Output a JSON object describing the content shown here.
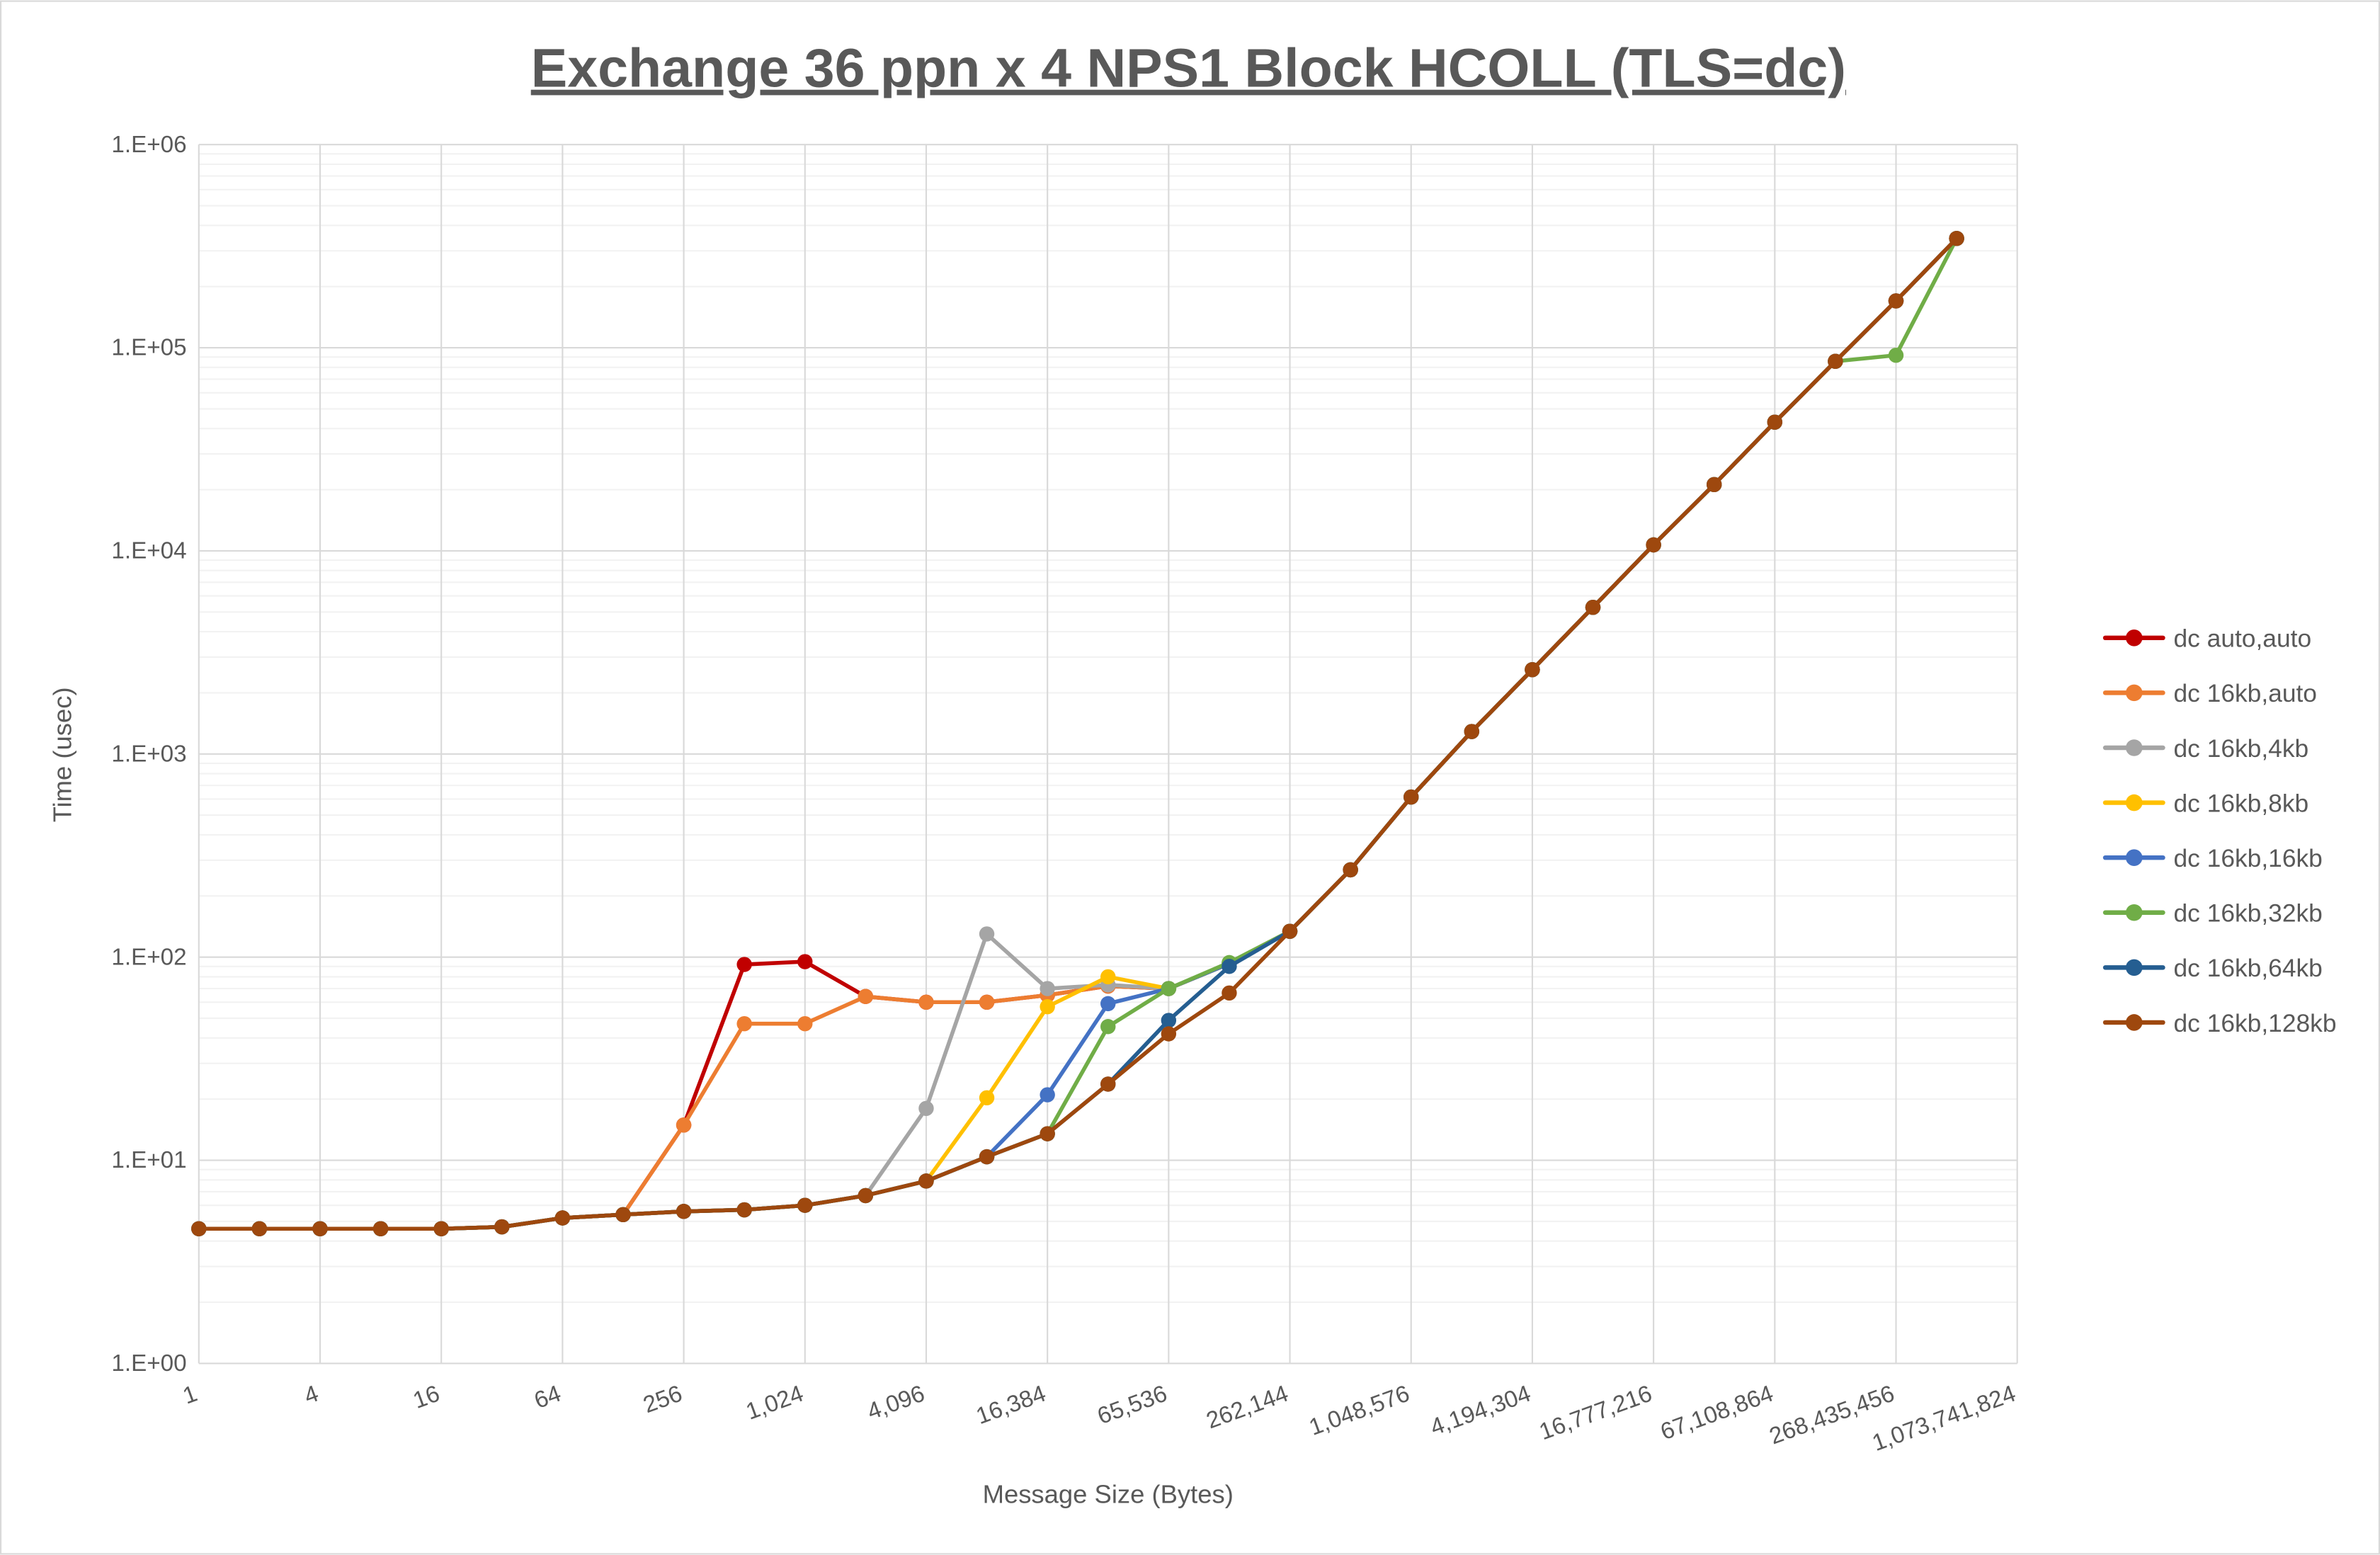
{
  "chart_data": {
    "type": "line",
    "title": "Exchange 36 ppn x 4 NPS1 Block HCOLL (TLS=dc)",
    "xlabel": "Message Size (Bytes)",
    "ylabel": "Time (usec)",
    "y_scale": "log",
    "ylim": [
      1,
      1000000
    ],
    "y_ticks": [
      "1.E+00",
      "1.E+01",
      "1.E+02",
      "1.E+03",
      "1.E+04",
      "1.E+05",
      "1.E+06"
    ],
    "x": [
      1,
      2,
      4,
      8,
      16,
      32,
      64,
      128,
      256,
      512,
      1024,
      2048,
      4096,
      8192,
      16384,
      32768,
      65536,
      131072,
      262144,
      524288,
      1048576,
      2097152,
      4194304,
      8388608,
      16777216,
      33554432,
      67108864,
      134217728,
      268435456,
      536870912,
      1073741824
    ],
    "x_tick_labels": [
      "1",
      "4",
      "16",
      "64",
      "256",
      "1,024",
      "4,096",
      "16,384",
      "65,536",
      "262,144",
      "1,048,576",
      "4,194,304",
      "16,777,216",
      "67,108,864",
      "268,435,456",
      "1,073,741,824"
    ],
    "grid": "major and minor",
    "legend_position": "right",
    "series": [
      {
        "name": "dc auto,auto",
        "color": "#C00000",
        "values": [
          4.6,
          4.6,
          4.6,
          4.6,
          4.6,
          4.7,
          5.2,
          5.4,
          14.9,
          92,
          95,
          64,
          60,
          60,
          65,
          72,
          70,
          93,
          134,
          269,
          614,
          1290,
          2600,
          5270,
          10700,
          21200,
          43000,
          85700,
          170000,
          345000,
          null
        ]
      },
      {
        "name": "dc 16kb,auto",
        "color": "#ED7D31",
        "values": [
          4.6,
          4.6,
          4.6,
          4.6,
          4.6,
          4.7,
          5.2,
          5.4,
          14.9,
          47,
          47,
          64,
          60,
          60,
          65,
          72,
          70,
          93,
          134,
          269,
          614,
          1290,
          2600,
          5270,
          10700,
          21200,
          43000,
          85700,
          170000,
          345000,
          null
        ]
      },
      {
        "name": "dc 16kb,4kb",
        "color": "#A5A5A5",
        "values": [
          4.6,
          4.6,
          4.6,
          4.6,
          4.6,
          4.7,
          5.2,
          5.4,
          5.6,
          5.7,
          6.0,
          6.7,
          18,
          130,
          70,
          73,
          70,
          93,
          134,
          269,
          614,
          1290,
          2600,
          5270,
          10700,
          21200,
          43000,
          85700,
          170000,
          345000,
          null
        ]
      },
      {
        "name": "dc 16kb,8kb",
        "color": "#FFC000",
        "values": [
          4.6,
          4.6,
          4.6,
          4.6,
          4.6,
          4.7,
          5.2,
          5.4,
          5.6,
          5.7,
          6.0,
          6.7,
          7.9,
          20.3,
          57,
          80,
          70,
          93,
          134,
          269,
          614,
          1290,
          2600,
          5270,
          10700,
          21200,
          43000,
          85700,
          170000,
          345000,
          null
        ]
      },
      {
        "name": "dc 16kb,16kb",
        "color": "#4472C4",
        "values": [
          4.6,
          4.6,
          4.6,
          4.6,
          4.6,
          4.7,
          5.2,
          5.4,
          5.6,
          5.7,
          6.0,
          6.7,
          7.9,
          10.4,
          21,
          59,
          70,
          93,
          134,
          269,
          614,
          1290,
          2600,
          5270,
          10700,
          21200,
          43000,
          85700,
          170000,
          345000,
          null
        ]
      },
      {
        "name": "dc 16kb,32kb",
        "color": "#70AD47",
        "values": [
          4.6,
          4.6,
          4.6,
          4.6,
          4.6,
          4.7,
          5.2,
          5.4,
          5.6,
          5.7,
          6.0,
          6.7,
          7.9,
          10.4,
          13.5,
          45.5,
          70,
          94,
          134,
          269,
          614,
          1290,
          2600,
          5270,
          10700,
          21200,
          43000,
          85700,
          91800,
          345000,
          null
        ]
      },
      {
        "name": "dc 16kb,64kb",
        "color": "#255E91",
        "values": [
          4.6,
          4.6,
          4.6,
          4.6,
          4.6,
          4.7,
          5.2,
          5.4,
          5.6,
          5.7,
          6.0,
          6.7,
          7.9,
          10.4,
          13.5,
          23.7,
          48.8,
          90,
          134,
          269,
          614,
          1290,
          2600,
          5270,
          10700,
          21200,
          43000,
          85700,
          170000,
          345000,
          null
        ]
      },
      {
        "name": "dc 16kb,128kb",
        "color": "#9E480E",
        "values": [
          4.6,
          4.6,
          4.6,
          4.6,
          4.6,
          4.7,
          5.2,
          5.4,
          5.6,
          5.7,
          6.0,
          6.7,
          7.9,
          10.4,
          13.5,
          23.7,
          41.9,
          66.6,
          134,
          269,
          614,
          1290,
          2600,
          5270,
          10700,
          21200,
          43000,
          85700,
          170000,
          345000,
          null
        ]
      }
    ]
  }
}
